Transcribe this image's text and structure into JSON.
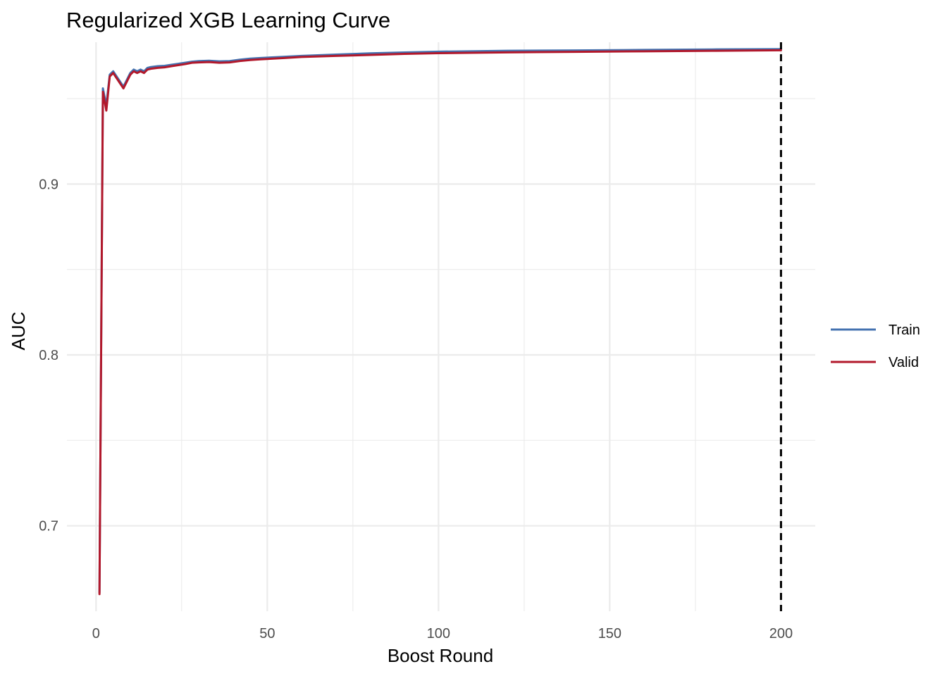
{
  "chart_data": {
    "type": "line",
    "title": "Regularized XGB Learning Curve",
    "xlabel": "Boost Round",
    "ylabel": "AUC",
    "xlim": [
      -8.5,
      210
    ],
    "ylim": [
      0.65,
      0.983
    ],
    "x_ticks": [
      0,
      50,
      100,
      150,
      200
    ],
    "x_tick_labels": [
      "0",
      "50",
      "100",
      "150",
      "200"
    ],
    "y_ticks": [
      0.7,
      0.8,
      0.9
    ],
    "y_tick_labels": [
      "0.7",
      "0.8",
      "0.9"
    ],
    "grid": true,
    "legend_position": "right",
    "vline": {
      "x": 200,
      "style": "dashed",
      "color": "#000000"
    },
    "series": [
      {
        "name": "Train",
        "color": "#4472b0",
        "x": [
          1,
          2,
          3,
          4,
          5,
          6,
          7,
          8,
          9,
          10,
          11,
          12,
          13,
          14,
          15,
          16,
          18,
          20,
          22,
          24,
          26,
          28,
          30,
          33,
          36,
          39,
          42,
          45,
          48,
          50,
          55,
          60,
          70,
          80,
          90,
          100,
          120,
          140,
          160,
          180,
          200
        ],
        "values": [
          0.661,
          0.956,
          0.946,
          0.964,
          0.966,
          0.963,
          0.96,
          0.957,
          0.961,
          0.965,
          0.967,
          0.966,
          0.967,
          0.966,
          0.968,
          0.9685,
          0.969,
          0.9692,
          0.9698,
          0.9704,
          0.971,
          0.9716,
          0.972,
          0.9722,
          0.9718,
          0.972,
          0.9728,
          0.9734,
          0.9738,
          0.974,
          0.9745,
          0.975,
          0.9758,
          0.9765,
          0.977,
          0.9775,
          0.978,
          0.9782,
          0.9785,
          0.9788,
          0.979
        ]
      },
      {
        "name": "Valid",
        "color": "#b2182b",
        "x": [
          1,
          2,
          3,
          4,
          5,
          6,
          7,
          8,
          9,
          10,
          11,
          12,
          13,
          14,
          15,
          16,
          18,
          20,
          22,
          24,
          26,
          28,
          30,
          33,
          36,
          39,
          42,
          45,
          48,
          50,
          55,
          60,
          70,
          80,
          90,
          100,
          120,
          140,
          160,
          180,
          200
        ],
        "values": [
          0.66,
          0.954,
          0.943,
          0.963,
          0.965,
          0.962,
          0.959,
          0.956,
          0.96,
          0.964,
          0.966,
          0.965,
          0.966,
          0.965,
          0.967,
          0.9675,
          0.968,
          0.9683,
          0.969,
          0.9696,
          0.9702,
          0.971,
          0.9712,
          0.9714,
          0.971,
          0.9712,
          0.972,
          0.9726,
          0.973,
          0.9732,
          0.9738,
          0.9744,
          0.975,
          0.9756,
          0.9762,
          0.9766,
          0.9771,
          0.9774,
          0.9777,
          0.978,
          0.9783
        ]
      }
    ]
  }
}
